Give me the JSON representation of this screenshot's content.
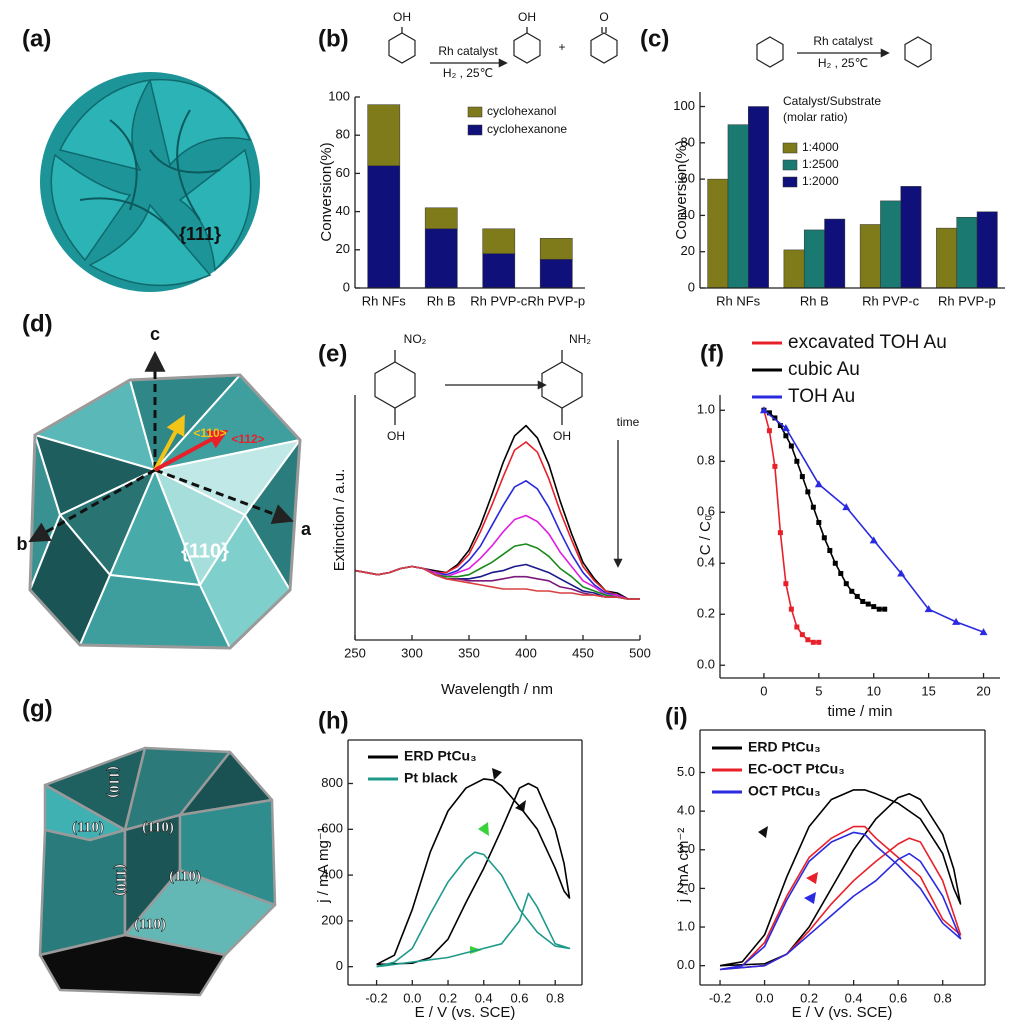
{
  "illustrations": {
    "a": {
      "label": "(a)",
      "facet": "{111}"
    },
    "d": {
      "label": "(d)",
      "axes": [
        "c",
        "b",
        "a"
      ],
      "directions": [
        "<110>",
        "<112>"
      ],
      "facet": "{110}"
    },
    "g": {
      "label": "(g)",
      "facets": [
        "(110)",
        "(110)",
        "(110)",
        "(110)",
        "(110)",
        "(110)"
      ]
    }
  },
  "chart_data": [
    {
      "type": "bar",
      "label": "(b)",
      "stacked": true,
      "scheme": [
        "OH",
        "Rh catalyst",
        "H₂ , 25℃",
        "OH",
        "+",
        "O"
      ],
      "categories": [
        "Rh NFs",
        "Rh B",
        "Rh PVP-c",
        "Rh PVP-p"
      ],
      "series": [
        {
          "name": "cyclohexanone",
          "color": "#10107a",
          "values": [
            64,
            31,
            18,
            15
          ]
        },
        {
          "name": "cyclohexanol",
          "color": "#7f7a1a",
          "values": [
            32,
            11,
            13,
            11
          ]
        }
      ],
      "ylabel": "Conversion(%)",
      "ylim": [
        0,
        100
      ],
      "yticks": [
        0,
        20,
        40,
        60,
        80,
        100
      ]
    },
    {
      "type": "bar",
      "label": "(c)",
      "scheme": [
        "Rh catalyst",
        "H₂ , 25℃"
      ],
      "legend_title": [
        "Catalyst/Substrate",
        "(molar ratio)"
      ],
      "categories": [
        "Rh NFs",
        "Rh B",
        "Rh PVP-c",
        "Rh PVP-p"
      ],
      "series": [
        {
          "name": "1:4000",
          "color": "#7f7a1a",
          "values": [
            60,
            21,
            35,
            33
          ]
        },
        {
          "name": "1:2500",
          "color": "#1a7a72",
          "values": [
            90,
            32,
            48,
            39
          ]
        },
        {
          "name": "1:2000",
          "color": "#10107a",
          "values": [
            100,
            38,
            56,
            42
          ]
        }
      ],
      "ylabel": "Conversion(%)",
      "ylim": [
        0,
        108
      ],
      "yticks": [
        0,
        20,
        40,
        60,
        80,
        100
      ]
    },
    {
      "type": "line",
      "label": "(e)",
      "scheme": [
        "NO₂",
        "OH",
        "NH₂",
        "OH",
        "time"
      ],
      "xlabel": "Wavelength / nm",
      "ylabel": "Extinction / a.u.",
      "x": [
        250,
        260,
        270,
        280,
        290,
        300,
        310,
        320,
        330,
        340,
        350,
        360,
        370,
        380,
        390,
        400,
        410,
        420,
        430,
        440,
        450,
        460,
        470,
        480,
        490,
        500
      ],
      "xlim": [
        250,
        500
      ],
      "xticks": [
        250,
        300,
        350,
        400,
        450,
        500
      ],
      "ylim": [
        -0.2,
        1.0
      ],
      "series": [
        {
          "color": "#000000",
          "values": [
            0.14,
            0.13,
            0.12,
            0.13,
            0.15,
            0.16,
            0.15,
            0.14,
            0.13,
            0.17,
            0.24,
            0.36,
            0.51,
            0.67,
            0.8,
            0.85,
            0.79,
            0.66,
            0.48,
            0.32,
            0.18,
            0.1,
            0.04,
            0.03,
            0,
            0
          ]
        },
        {
          "color": "#e8202a",
          "values": [
            0.14,
            0.13,
            0.12,
            0.13,
            0.15,
            0.16,
            0.15,
            0.13,
            0.13,
            0.16,
            0.22,
            0.33,
            0.46,
            0.6,
            0.73,
            0.77,
            0.72,
            0.59,
            0.43,
            0.29,
            0.16,
            0.09,
            0.04,
            0.02,
            0,
            0
          ]
        },
        {
          "color": "#2929d9",
          "values": [
            0.14,
            0.13,
            0.12,
            0.13,
            0.15,
            0.16,
            0.15,
            0.13,
            0.12,
            0.14,
            0.19,
            0.26,
            0.36,
            0.46,
            0.55,
            0.58,
            0.54,
            0.45,
            0.33,
            0.22,
            0.13,
            0.07,
            0.03,
            0.02,
            0,
            0
          ]
        },
        {
          "color": "#e01ee0",
          "values": [
            0.14,
            0.13,
            0.12,
            0.13,
            0.15,
            0.16,
            0.15,
            0.13,
            0.11,
            0.13,
            0.15,
            0.2,
            0.26,
            0.33,
            0.39,
            0.41,
            0.38,
            0.32,
            0.23,
            0.16,
            0.09,
            0.06,
            0.02,
            0.02,
            0,
            0
          ]
        },
        {
          "color": "#1a8a1a",
          "values": [
            0.14,
            0.13,
            0.12,
            0.13,
            0.15,
            0.16,
            0.15,
            0.12,
            0.11,
            0.11,
            0.12,
            0.15,
            0.18,
            0.22,
            0.26,
            0.27,
            0.25,
            0.21,
            0.15,
            0.11,
            0.06,
            0.04,
            0.02,
            0.01,
            0,
            0
          ]
        },
        {
          "color": "#1a1a8a",
          "values": [
            0.14,
            0.13,
            0.12,
            0.13,
            0.15,
            0.16,
            0.15,
            0.12,
            0.1,
            0.1,
            0.1,
            0.11,
            0.13,
            0.14,
            0.16,
            0.17,
            0.15,
            0.13,
            0.1,
            0.07,
            0.04,
            0.03,
            0.01,
            0.01,
            0,
            0
          ]
        },
        {
          "color": "#7a1a7a",
          "values": [
            0.14,
            0.13,
            0.12,
            0.13,
            0.15,
            0.16,
            0.15,
            0.12,
            0.1,
            0.1,
            0.09,
            0.09,
            0.09,
            0.1,
            0.11,
            0.11,
            0.1,
            0.09,
            0.06,
            0.05,
            0.03,
            0.02,
            0.01,
            0.01,
            0,
            0
          ]
        },
        {
          "color": "#d84040",
          "values": [
            0.14,
            0.13,
            0.12,
            0.13,
            0.15,
            0.16,
            0.15,
            0.12,
            0.1,
            0.09,
            0.08,
            0.07,
            0.06,
            0.05,
            0.05,
            0.05,
            0.04,
            0.04,
            0.03,
            0.03,
            0.02,
            0.02,
            0.01,
            0.01,
            0,
            0
          ]
        }
      ]
    },
    {
      "type": "line",
      "label": "(f)",
      "xlabel": "time / min",
      "ylabel": "C / C₀",
      "xlim": [
        -4,
        21.5
      ],
      "xticks": [
        0,
        5,
        10,
        15,
        20
      ],
      "ylim": [
        -0.05,
        1.06
      ],
      "yticks": [
        {
          "value": 0,
          "label": "0.0"
        },
        0.2,
        0.4,
        0.6,
        0.8,
        {
          "value": 1,
          "label": "1.0"
        }
      ],
      "series": [
        {
          "name": "excavated TOH Au",
          "color": "#e8202a",
          "marker": "square",
          "x": [
            0,
            0.5,
            1,
            1.5,
            2,
            2.5,
            3,
            3.5,
            4,
            4.5,
            5
          ],
          "values": [
            1.0,
            0.92,
            0.78,
            0.52,
            0.32,
            0.22,
            0.15,
            0.12,
            0.1,
            0.09,
            0.09
          ]
        },
        {
          "name": "cubic Au",
          "color": "#000000",
          "marker": "square",
          "x": [
            0,
            0.5,
            1,
            1.5,
            2,
            2.5,
            3,
            3.5,
            4,
            4.5,
            5,
            5.5,
            6,
            6.5,
            7,
            7.5,
            8,
            8.5,
            9,
            9.5,
            10,
            10.5,
            11
          ],
          "values": [
            1,
            0.99,
            0.97,
            0.94,
            0.9,
            0.86,
            0.8,
            0.74,
            0.68,
            0.62,
            0.56,
            0.5,
            0.45,
            0.4,
            0.36,
            0.32,
            0.29,
            0.27,
            0.25,
            0.24,
            0.23,
            0.22,
            0.22
          ]
        },
        {
          "name": "TOH Au",
          "color": "#2a2ae0",
          "marker": "triangle",
          "x": [
            0,
            2,
            5,
            7.5,
            10,
            12.5,
            15,
            17.5,
            20
          ],
          "values": [
            1,
            0.93,
            0.71,
            0.62,
            0.49,
            0.36,
            0.22,
            0.17,
            0.13
          ]
        }
      ]
    },
    {
      "type": "line",
      "label": "(h)",
      "xlabel": "E / V (vs. SCE)",
      "ylabel": "j / mA mg⁻¹",
      "xlim": [
        -0.36,
        0.95
      ],
      "xticks": [
        -0.2,
        {
          "value": 0,
          "label": "0.0"
        },
        0.2,
        0.4,
        0.6,
        0.8
      ],
      "ylim": [
        -80,
        990
      ],
      "yticks": [
        0,
        200,
        400,
        600,
        800
      ],
      "series": [
        {
          "name": "ERD PtCu₃",
          "color": "#000000",
          "x": [
            -0.2,
            0,
            0.1,
            0.2,
            0.3,
            0.4,
            0.5,
            0.6,
            0.65,
            0.7,
            0.8,
            0.85,
            0.88,
            0.85,
            0.8,
            0.7,
            0.6,
            0.5,
            0.45,
            0.4,
            0.3,
            0.2,
            0.1,
            0,
            -0.1,
            -0.2
          ],
          "values": [
            10,
            15,
            40,
            120,
            280,
            430,
            600,
            780,
            800,
            780,
            600,
            450,
            300,
            330,
            430,
            600,
            700,
            790,
            815,
            820,
            780,
            680,
            500,
            250,
            50,
            10
          ]
        },
        {
          "name": "Pt black",
          "color": "#1f9a8a",
          "x": [
            -0.2,
            0,
            0.2,
            0.3,
            0.4,
            0.5,
            0.6,
            0.65,
            0.7,
            0.8,
            0.88,
            0.8,
            0.7,
            0.6,
            0.5,
            0.4,
            0.35,
            0.3,
            0.2,
            0.1,
            0,
            -0.1,
            -0.2
          ],
          "values": [
            0,
            20,
            40,
            60,
            80,
            100,
            200,
            320,
            260,
            100,
            80,
            90,
            150,
            250,
            400,
            490,
            500,
            470,
            370,
            230,
            80,
            20,
            0
          ]
        }
      ]
    },
    {
      "type": "line",
      "label": "(i)",
      "xlabel": "E / V (vs. SCE)",
      "ylabel": "j / mA cm⁻²",
      "xlim": [
        -0.29,
        0.99
      ],
      "xticks": [
        -0.2,
        {
          "value": 0,
          "label": "0.0"
        },
        0.2,
        0.4,
        0.6,
        0.8
      ],
      "ylim": [
        -0.5,
        6.1
      ],
      "yticks": [
        {
          "value": 0,
          "label": "0.0"
        },
        {
          "value": 1,
          "label": "1.0"
        },
        {
          "value": 2,
          "label": "2.0"
        },
        {
          "value": 3,
          "label": "3.0"
        },
        {
          "value": 4,
          "label": "4.0"
        },
        {
          "value": 5,
          "label": "5.0"
        }
      ],
      "series": [
        {
          "name": "ERD PtCu₃",
          "color": "#000000",
          "x": [
            -0.2,
            0,
            0.1,
            0.2,
            0.3,
            0.4,
            0.5,
            0.6,
            0.65,
            0.7,
            0.8,
            0.85,
            0.88,
            0.85,
            0.8,
            0.7,
            0.6,
            0.5,
            0.45,
            0.4,
            0.3,
            0.2,
            0.1,
            0,
            -0.1,
            -0.2
          ],
          "values": [
            0,
            0.05,
            0.3,
            1.0,
            2.0,
            3.0,
            3.8,
            4.35,
            4.45,
            4.3,
            3.4,
            2.5,
            1.6,
            2.0,
            2.9,
            3.8,
            4.2,
            4.45,
            4.55,
            4.55,
            4.3,
            3.6,
            2.3,
            0.8,
            0.1,
            0
          ]
        },
        {
          "name": "EC-OCT PtCu₃",
          "color": "#e8202a",
          "x": [
            -0.2,
            0,
            0.1,
            0.2,
            0.3,
            0.4,
            0.5,
            0.6,
            0.65,
            0.7,
            0.8,
            0.88,
            0.8,
            0.7,
            0.6,
            0.5,
            0.45,
            0.4,
            0.3,
            0.2,
            0.1,
            0,
            -0.1,
            -0.2
          ],
          "values": [
            -0.1,
            0,
            0.3,
            0.9,
            1.6,
            2.2,
            2.7,
            3.15,
            3.3,
            3.2,
            2.2,
            0.8,
            1.2,
            2.3,
            2.8,
            3.3,
            3.6,
            3.6,
            3.3,
            2.8,
            1.8,
            0.6,
            0,
            -0.1
          ]
        },
        {
          "name": "OCT PtCu₃",
          "color": "#2a2ae0",
          "x": [
            -0.2,
            0,
            0.1,
            0.2,
            0.3,
            0.4,
            0.5,
            0.6,
            0.65,
            0.7,
            0.8,
            0.88,
            0.8,
            0.7,
            0.6,
            0.5,
            0.45,
            0.4,
            0.3,
            0.2,
            0.1,
            0,
            -0.1,
            -0.2
          ],
          "values": [
            -0.1,
            0,
            0.3,
            0.8,
            1.3,
            1.8,
            2.2,
            2.75,
            2.9,
            2.7,
            1.8,
            0.7,
            1.1,
            2.0,
            2.6,
            3.1,
            3.4,
            3.45,
            3.2,
            2.7,
            1.7,
            0.5,
            0,
            -0.1
          ]
        }
      ]
    }
  ]
}
